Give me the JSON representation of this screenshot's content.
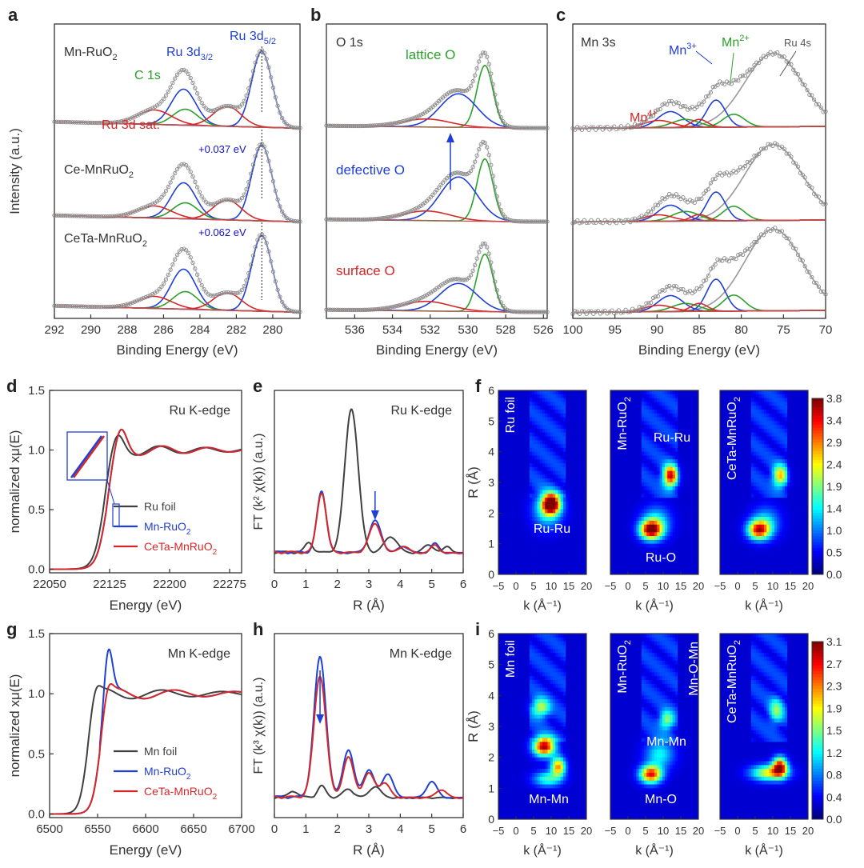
{
  "chart_data": [
    {
      "letter": "a",
      "type": "line",
      "xlabel": "Binding Energy (eV)",
      "ylabel": "Intensity (a.u.)",
      "xlim": [
        292,
        278.5
      ],
      "x_ticks": [
        292,
        290,
        288,
        286,
        284,
        282,
        280
      ],
      "stack_labels": [
        {
          "text": "Mn-RuO",
          "sub": "2",
          "x": 292
        },
        {
          "text": "Ce-MnRuO",
          "sub": "2",
          "x": 292
        },
        {
          "text": "CeTa-MnRuO",
          "sub": "2",
          "x": 292
        }
      ],
      "annotations": [
        {
          "text": "C 1s",
          "color": "#2ca02c",
          "x": 286.3
        },
        {
          "text": "Ru 3d",
          "sub": "3/2",
          "color": "#1f3fd6",
          "x": 286.0
        },
        {
          "text": "Ru 3d",
          "sub": "5/2",
          "color": "#1f3fd6",
          "x": 283.4
        },
        {
          "text": "Ru 3d sat.",
          "color": "#d62728",
          "x": 287.8
        },
        {
          "text": "+0.037 eV",
          "color": "#1010d0",
          "x": 285.5
        },
        {
          "text": "+0.062 eV",
          "color": "#1010d0",
          "x": 285.5
        }
      ],
      "peaks": [
        {
          "component": "Ru 3d5/2",
          "color": "#1f3fd6",
          "center": 280.6,
          "fwhm": 1.3
        },
        {
          "component": "Ru 3d3/2",
          "color": "#1f3fd6",
          "center": 284.9,
          "fwhm": 1.6
        },
        {
          "component": "C 1s",
          "color": "#2ca02c",
          "center": 284.8,
          "fwhm": 1.6
        },
        {
          "component": "Ru 3d sat.",
          "color": "#d62728",
          "center": 282.5,
          "fwhm": 1.8
        },
        {
          "component": "Ru 3d sat.",
          "color": "#d62728",
          "center": 286.5,
          "fwhm": 2.2
        }
      ]
    },
    {
      "letter": "b",
      "type": "line",
      "xlabel": "Binding Energy (eV)",
      "xlim": [
        537.5,
        525.8
      ],
      "x_ticks": [
        536,
        534,
        532,
        530,
        528,
        526
      ],
      "annotations": [
        {
          "text": "O 1s",
          "color": "#333333"
        },
        {
          "text": "lattice O",
          "color": "#2ca02c"
        },
        {
          "text": "defective O",
          "color": "#1f3fd6"
        },
        {
          "text": "surface O",
          "color": "#d62728"
        }
      ],
      "peaks": [
        {
          "component": "lattice O",
          "color": "#2ca02c",
          "center": 529.1,
          "fwhm": 1.0
        },
        {
          "component": "defective O",
          "color": "#1f3fd6",
          "center": 530.5,
          "fwhm": 2.3
        },
        {
          "component": "surface O",
          "color": "#d62728",
          "center": 532.2,
          "fwhm": 3.0
        }
      ]
    },
    {
      "letter": "c",
      "type": "line",
      "xlabel": "Binding Energy (eV)",
      "xlim": [
        100,
        70
      ],
      "x_ticks": [
        100,
        95,
        90,
        85,
        80,
        75,
        70
      ],
      "annotations": [
        {
          "text": "Mn 3s",
          "color": "#333333"
        },
        {
          "text": "Mn",
          "sup": "3+",
          "color": "#1f3fd6"
        },
        {
          "text": "Mn",
          "sup": "2+",
          "color": "#2ca02c"
        },
        {
          "text": "Ru 4s",
          "color": "#555555"
        },
        {
          "text": "Mn",
          "sup": "4+",
          "color": "#d62728"
        }
      ],
      "peaks": [
        {
          "component": "Ru 4s",
          "color": "#999999",
          "center": 76.2,
          "fwhm": 8.0
        },
        {
          "component": "Mn3+",
          "color": "#1f3fd6",
          "center": 83.0,
          "fwhm": 2.6
        },
        {
          "component": "Mn3+",
          "color": "#1f3fd6",
          "center": 88.4,
          "fwhm": 3.5
        },
        {
          "component": "Mn2+",
          "color": "#2ca02c",
          "center": 80.9,
          "fwhm": 3.0
        },
        {
          "component": "Mn2+",
          "color": "#2ca02c",
          "center": 86.6,
          "fwhm": 3.8
        },
        {
          "component": "Mn4+",
          "color": "#d62728",
          "center": 85.0,
          "fwhm": 2.3
        },
        {
          "component": "Mn4+",
          "color": "#d62728",
          "center": 89.8,
          "fwhm": 4.0
        }
      ]
    },
    {
      "letter": "d",
      "type": "line",
      "xlabel": "Energy (eV)",
      "ylabel": "normalized xμ(E)",
      "xlim": [
        22050,
        22290
      ],
      "ylim": [
        -0.03,
        1.5
      ],
      "x_ticks": [
        22050,
        22125,
        22200,
        22275
      ],
      "y_ticks": [
        0.0,
        0.5,
        1.0,
        1.5
      ],
      "y_tick_labels": [
        "0.0",
        "0.5",
        "1.0",
        "1.5"
      ],
      "annotations": [
        {
          "text": "Ru K-edge",
          "color": "#333333"
        }
      ],
      "series": [
        {
          "name": "Ru foil",
          "color": "#404040",
          "edge": 22117,
          "white_line": 1.12
        },
        {
          "name": "Mn-RuO",
          "sub": "2",
          "color": "#1f3fd6",
          "edge": 22121,
          "white_line": 1.17
        },
        {
          "name": "CeTa-MnRuO",
          "sub": "2",
          "color": "#d62728",
          "edge": 22121,
          "white_line": 1.17
        }
      ]
    },
    {
      "letter": "e",
      "type": "line",
      "xlabel": "R (Å)",
      "ylabel": "FT (k² χ(k)) (a.u.)",
      "xlim": [
        0,
        6
      ],
      "x_ticks": [
        0,
        1,
        2,
        3,
        4,
        5,
        6
      ],
      "annotations": [
        {
          "text": "Ru K-edge",
          "color": "#333333"
        }
      ],
      "series": [
        {
          "name": "Ru foil",
          "color": "#404040",
          "main_peak_R": 2.45
        },
        {
          "name": "Mn-RuO2",
          "color": "#1f3fd6",
          "main_peak_R": 1.5
        },
        {
          "name": "CeTa-MnRuO2",
          "color": "#d62728",
          "main_peak_R": 1.5
        }
      ]
    },
    {
      "letter": "f",
      "type": "heatmap",
      "xlabel": "k (Å⁻¹)",
      "ylabel": "R (Å)",
      "xlim": [
        -5,
        20
      ],
      "ylim": [
        0,
        6
      ],
      "x_ticks": [
        -5,
        0,
        5,
        10,
        15,
        20
      ],
      "x_tick_labels": [
        "−5",
        "0",
        "5",
        "10",
        "15",
        "20"
      ],
      "y_ticks": [
        0,
        1,
        2,
        3,
        4,
        5,
        6
      ],
      "y_tick_labels": [
        "0",
        "1",
        "2",
        "3",
        "4",
        "5",
        "6"
      ],
      "colorbar_ticks": [
        "3.8",
        "3.4",
        "2.9",
        "2.4",
        "1.9",
        "1.4",
        "1.0",
        "0.5",
        "0.0"
      ],
      "maps": [
        {
          "title": "Ru foil",
          "labels": [
            "Ru-Ru"
          ],
          "blobs": [
            [
              10,
              2.3,
              2.4,
              0.3,
              1.0
            ],
            [
              9,
              2.1,
              4.0,
              0.55,
              0.35
            ]
          ]
        },
        {
          "title": "Mn-RuO",
          "sub": "2",
          "labels": [
            "Ru-Ru",
            "Ru-O"
          ],
          "blobs": [
            [
              6.5,
              1.45,
              3.0,
              0.3,
              0.85
            ],
            [
              12,
              3.2,
              2.0,
              0.35,
              0.8
            ],
            [
              8,
              1.7,
              4.0,
              0.5,
              0.3
            ]
          ]
        },
        {
          "title": "CeTa-MnRuO",
          "sub": "2",
          "labels": [],
          "blobs": [
            [
              6,
              1.45,
              3.0,
              0.3,
              0.75
            ],
            [
              12,
              3.2,
              2.0,
              0.35,
              0.55
            ],
            [
              8,
              1.7,
              4.0,
              0.5,
              0.25
            ]
          ]
        }
      ]
    },
    {
      "letter": "g",
      "type": "line",
      "xlabel": "Energy (eV)",
      "ylabel": "normalized xμ(E)",
      "xlim": [
        6500,
        6700
      ],
      "ylim": [
        -0.03,
        1.5
      ],
      "x_ticks": [
        6500,
        6550,
        6600,
        6650,
        6700
      ],
      "y_ticks": [
        0.0,
        0.5,
        1.0,
        1.5
      ],
      "y_tick_labels": [
        "0.0",
        "0.5",
        "1.0",
        "1.5"
      ],
      "annotations": [
        {
          "text": "Mn K-edge",
          "color": "#333333"
        }
      ],
      "series": [
        {
          "name": "Mn foil",
          "color": "#404040",
          "edge": 6539,
          "white_line": 1.08
        },
        {
          "name": "Mn-RuO",
          "sub": "2",
          "color": "#1f3fd6",
          "edge": 6552,
          "white_line": 1.41
        },
        {
          "name": "CeTa-MnRuO",
          "sub": "2",
          "color": "#d62728",
          "edge": 6552,
          "white_line": 1.1
        }
      ]
    },
    {
      "letter": "h",
      "type": "line",
      "xlabel": "R (Å)",
      "ylabel": "FT (k³ χ(k)) (a.u.)",
      "xlim": [
        0,
        6
      ],
      "x_ticks": [
        0,
        1,
        2,
        3,
        4,
        5,
        6
      ],
      "annotations": [
        {
          "text": "Mn K-edge",
          "color": "#333333"
        }
      ],
      "series": [
        {
          "name": "Mn foil",
          "color": "#404040",
          "main_peak_R": 2.3
        },
        {
          "name": "Mn-RuO2",
          "color": "#1f3fd6",
          "main_peak_R": 1.45
        },
        {
          "name": "CeTa-MnRuO2",
          "color": "#d62728",
          "main_peak_R": 1.45
        }
      ]
    },
    {
      "letter": "i",
      "type": "heatmap",
      "xlabel": "k (Å⁻¹)",
      "ylabel": "R (Å)",
      "xlim": [
        -5,
        20
      ],
      "ylim": [
        0,
        6
      ],
      "x_ticks": [
        -5,
        0,
        5,
        10,
        15,
        20
      ],
      "x_tick_labels": [
        "−5",
        "0",
        "5",
        "10",
        "15",
        "20"
      ],
      "y_ticks": [
        0,
        1,
        2,
        3,
        4,
        5,
        6
      ],
      "y_tick_labels": [
        "0",
        "1",
        "2",
        "3",
        "4",
        "5",
        "6"
      ],
      "colorbar_ticks": [
        "3.1",
        "2.7",
        "2.3",
        "1.9",
        "1.5",
        "1.2",
        "0.8",
        "0.4",
        "0.0"
      ],
      "maps": [
        {
          "title": "Mn foil",
          "labels": [
            "Mn-Mn"
          ],
          "blobs": [
            [
              8,
              2.35,
              3.0,
              0.3,
              0.9
            ],
            [
              12,
              1.7,
              2.0,
              0.3,
              0.65
            ],
            [
              7,
              3.6,
              2.5,
              0.3,
              0.45
            ],
            [
              9,
              1.3,
              4.0,
              0.25,
              0.35
            ]
          ]
        },
        {
          "title": "Mn-RuO",
          "sub": "2",
          "labels": [
            "Mn-O-Mn",
            "Mn-Mn",
            "Mn-O"
          ],
          "blobs": [
            [
              6.5,
              1.45,
              3.0,
              0.28,
              0.8
            ],
            [
              11,
              3.2,
              2.0,
              0.3,
              0.4
            ],
            [
              9,
              2.1,
              4.0,
              0.45,
              0.3
            ]
          ]
        },
        {
          "title": "CeTa-MnRuO",
          "sub": "2",
          "labels": [],
          "blobs": [
            [
              9,
              1.5,
              5.0,
              0.25,
              0.55
            ],
            [
              12,
              1.7,
              2.0,
              0.3,
              0.8
            ],
            [
              11,
              3.5,
              2.0,
              0.4,
              0.35
            ]
          ]
        }
      ]
    }
  ]
}
